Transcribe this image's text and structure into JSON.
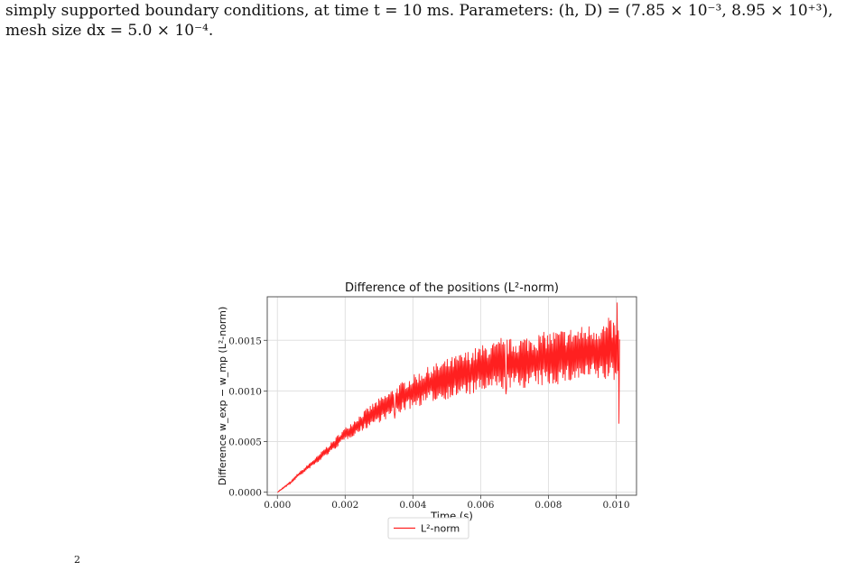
{
  "caption": {
    "line1": "simply supported boundary conditions, at time t = 10 ms. Parameters: (h, D) = (7.85 × 10⁻³, 8.95 × 10⁺³),",
    "line2": "mesh size dx = 5.0 × 10⁻⁴."
  },
  "footer_fragment": "2",
  "chart_data": {
    "type": "line",
    "title": "Difference of the positions (L²-norm)",
    "xlabel": "Time (s)",
    "ylabel": "Difference w_exp − w_mp (L²-norm)",
    "xlim": [
      -0.0003,
      0.0106
    ],
    "ylim": [
      -3e-05,
      0.00193
    ],
    "xticks": [
      "0.000",
      "0.002",
      "0.004",
      "0.006",
      "0.008",
      "0.010"
    ],
    "xtick_values": [
      0.0,
      0.002,
      0.004,
      0.006,
      0.008,
      0.01
    ],
    "yticks": [
      "0.0000",
      "0.0005",
      "0.0010",
      "0.0015"
    ],
    "ytick_values": [
      0.0,
      0.0005,
      0.001,
      0.0015
    ],
    "grid": true,
    "legend_position": "below",
    "series": [
      {
        "name": "L²-norm",
        "color": "#ff2020",
        "points": [
          [
            0.0,
            0.0
          ],
          [
            0.0002,
            5e-05
          ],
          [
            0.0004,
            0.0001
          ],
          [
            0.0006,
            0.00017
          ],
          [
            0.0008,
            0.00022
          ],
          [
            0.001,
            0.00028
          ],
          [
            0.0012,
            0.00033
          ],
          [
            0.0014,
            0.0004
          ],
          [
            0.0016,
            0.00045
          ],
          [
            0.0018,
            0.00052
          ],
          [
            0.002,
            0.00058
          ],
          [
            0.0022,
            0.00063
          ],
          [
            0.0024,
            0.00068
          ],
          [
            0.0026,
            0.00073
          ],
          [
            0.0028,
            0.00078
          ],
          [
            0.003,
            0.00082
          ],
          [
            0.0032,
            0.00086
          ],
          [
            0.0034,
            0.0009
          ],
          [
            0.0036,
            0.00094
          ],
          [
            0.0038,
            0.00098
          ],
          [
            0.004,
            0.00101
          ],
          [
            0.0042,
            0.00104
          ],
          [
            0.0044,
            0.00107
          ],
          [
            0.0046,
            0.0011
          ],
          [
            0.0048,
            0.00112
          ],
          [
            0.005,
            0.00114
          ],
          [
            0.0052,
            0.00116
          ],
          [
            0.0054,
            0.00118
          ],
          [
            0.0056,
            0.0012
          ],
          [
            0.0058,
            0.00122
          ],
          [
            0.006,
            0.00124
          ],
          [
            0.0062,
            0.00126
          ],
          [
            0.0064,
            0.00127
          ],
          [
            0.0066,
            0.00128
          ],
          [
            0.0068,
            0.00129
          ],
          [
            0.007,
            0.0013
          ],
          [
            0.0072,
            0.00131
          ],
          [
            0.0074,
            0.00132
          ],
          [
            0.0076,
            0.00133
          ],
          [
            0.0078,
            0.00134
          ],
          [
            0.008,
            0.00135
          ],
          [
            0.0082,
            0.00136
          ],
          [
            0.0084,
            0.00137
          ],
          [
            0.0086,
            0.00138
          ],
          [
            0.0088,
            0.00139
          ],
          [
            0.009,
            0.0014
          ],
          [
            0.0092,
            0.00141
          ],
          [
            0.0094,
            0.00142
          ],
          [
            0.0096,
            0.00142
          ],
          [
            0.0098,
            0.00143
          ],
          [
            0.01,
            0.00143
          ],
          [
            0.0101,
            0.00132
          ]
        ],
        "oscillation_amplitude": [
          [
            0.0,
            5e-06
          ],
          [
            0.001,
            3e-05
          ],
          [
            0.002,
            7e-05
          ],
          [
            0.003,
            0.00013
          ],
          [
            0.004,
            0.00018
          ],
          [
            0.005,
            0.00022
          ],
          [
            0.006,
            0.00026
          ],
          [
            0.007,
            0.00028
          ],
          [
            0.008,
            0.0003
          ],
          [
            0.009,
            0.0003
          ],
          [
            0.01,
            0.00034
          ]
        ],
        "peaks": [
          [
            0.00347,
            0.00073
          ],
          [
            0.00675,
            0.00097
          ],
          [
            0.0066,
            0.00152
          ],
          [
            0.00978,
            0.00172
          ],
          [
            0.01003,
            0.00187
          ],
          [
            0.01008,
            0.00068
          ]
        ]
      }
    ]
  }
}
